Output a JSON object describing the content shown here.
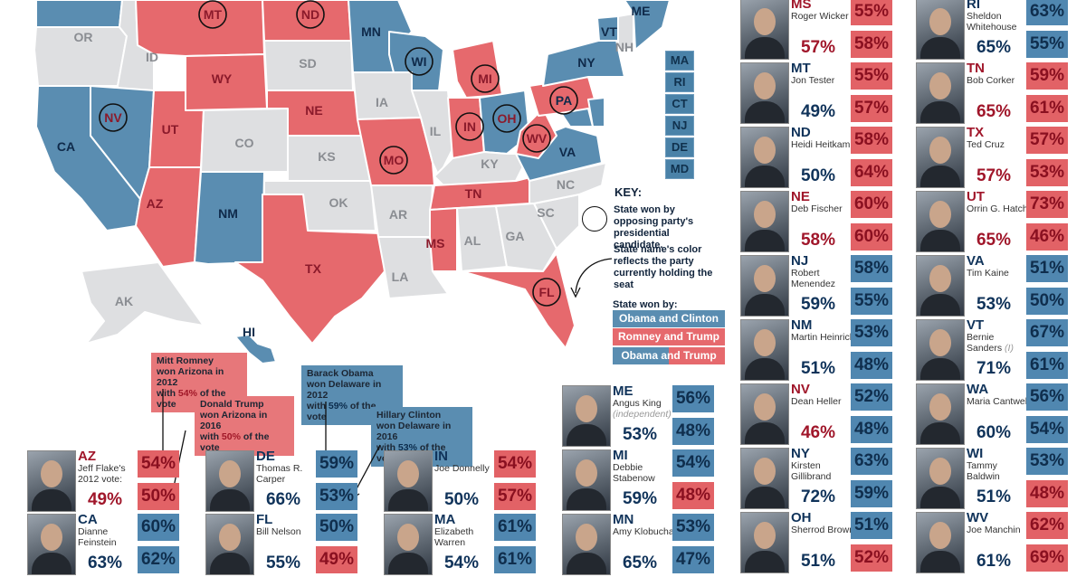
{
  "colors": {
    "blue": "#5a8db1",
    "red": "#e6696d",
    "gray": "#dedfe1",
    "dark_red": "#a0162a",
    "dark_blue": "#10335a"
  },
  "map": {
    "state_labels": [
      "OR",
      "ID",
      "MT",
      "ND",
      "MN",
      "WI",
      "MI",
      "NY",
      "VT",
      "NH",
      "ME",
      "SD",
      "WY",
      "NV",
      "CA",
      "UT",
      "CO",
      "NE",
      "IA",
      "IL",
      "IN",
      "OH",
      "PA",
      "WV",
      "VA",
      "KS",
      "MO",
      "KY",
      "AZ",
      "NM",
      "OK",
      "AR",
      "TN",
      "NC",
      "SC",
      "TX",
      "LA",
      "MS",
      "AL",
      "GA",
      "FL",
      "AK",
      "HI"
    ],
    "circled": [
      "MT",
      "ND",
      "NV",
      "WI",
      "MI",
      "OH",
      "PA",
      "WV",
      "IN",
      "MO",
      "FL"
    ],
    "northeast_boxes": [
      "MA",
      "RI",
      "CT",
      "NJ",
      "DE",
      "MD"
    ]
  },
  "key": {
    "title": "KEY:",
    "circle_text": "State won by opposing party's presidential candidate.",
    "name_color_text": "State name's color reflects the party currently holding the seat",
    "won_by_title": "State won by:",
    "legend": [
      "Obama and Clinton",
      "Romney and Trump",
      "Obama and Trump"
    ]
  },
  "callouts": {
    "romney": [
      "Mitt Romney",
      "won Arizona in 2012",
      "with ",
      "54%",
      " of the vote"
    ],
    "trump": [
      "Donald Trump",
      "won Arizona in 2016",
      "with ",
      "50%",
      " of the vote"
    ],
    "obama": [
      "Barack Obama",
      "won Delaware in 2012",
      "with ",
      "59%",
      " of the vote"
    ],
    "clinton": [
      "Hillary Clinton",
      "won Delaware in 2016",
      "with ",
      "53%",
      " of the vote"
    ]
  },
  "senators": [
    {
      "state": "AZ",
      "name": "Jeff Flake's 2012 vote:",
      "note": "",
      "party": "red",
      "vote": "49%",
      "p2012": "54%",
      "c2012": "red",
      "p2016": "50%",
      "c2016": "red"
    },
    {
      "state": "CA",
      "name": "Dianne Feinstein",
      "note": "",
      "party": "blue",
      "vote": "63%",
      "p2012": "60%",
      "c2012": "blue",
      "p2016": "62%",
      "c2016": "blue"
    },
    {
      "state": "DE",
      "name": "Thomas R. Carper",
      "note": "",
      "party": "blue",
      "vote": "66%",
      "p2012": "59%",
      "c2012": "blue",
      "p2016": "53%",
      "c2016": "blue"
    },
    {
      "state": "FL",
      "name": "Bill Nelson",
      "note": "",
      "party": "blue",
      "vote": "55%",
      "p2012": "50%",
      "c2012": "blue",
      "p2016": "49%",
      "c2016": "red"
    },
    {
      "state": "IN",
      "name": "Joe Donnelly",
      "note": "",
      "party": "blue",
      "vote": "50%",
      "p2012": "54%",
      "c2012": "red",
      "p2016": "57%",
      "c2016": "red"
    },
    {
      "state": "MA",
      "name": "Elizabeth Warren",
      "note": "",
      "party": "blue",
      "vote": "54%",
      "p2012": "61%",
      "c2012": "blue",
      "p2016": "61%",
      "c2016": "blue"
    },
    {
      "state": "ME",
      "name": "Angus King",
      "note": "(independent)",
      "party": "blue",
      "vote": "53%",
      "p2012": "56%",
      "c2012": "blue",
      "p2016": "48%",
      "c2016": "blue"
    },
    {
      "state": "MI",
      "name": "Debbie Stabenow",
      "note": "",
      "party": "blue",
      "vote": "59%",
      "p2012": "54%",
      "c2012": "blue",
      "p2016": "48%",
      "c2016": "red"
    },
    {
      "state": "MN",
      "name": "Amy Klobuchar",
      "note": "",
      "party": "blue",
      "vote": "65%",
      "p2012": "53%",
      "c2012": "blue",
      "p2016": "47%",
      "c2016": "blue"
    },
    {
      "state": "MS",
      "name": "Roger Wicker",
      "note": "",
      "party": "red",
      "vote": "57%",
      "p2012": "55%",
      "c2012": "red",
      "p2016": "58%",
      "c2016": "red"
    },
    {
      "state": "MT",
      "name": "Jon Tester",
      "note": "",
      "party": "blue",
      "vote": "49%",
      "p2012": "55%",
      "c2012": "red",
      "p2016": "57%",
      "c2016": "red"
    },
    {
      "state": "ND",
      "name": "Heidi Heitkamp",
      "note": "",
      "party": "blue",
      "vote": "50%",
      "p2012": "58%",
      "c2012": "red",
      "p2016": "64%",
      "c2016": "red"
    },
    {
      "state": "NE",
      "name": "Deb Fischer",
      "note": "",
      "party": "red",
      "vote": "58%",
      "p2012": "60%",
      "c2012": "red",
      "p2016": "60%",
      "c2016": "red"
    },
    {
      "state": "NJ",
      "name": "Robert Menendez",
      "note": "",
      "party": "blue",
      "vote": "59%",
      "p2012": "58%",
      "c2012": "blue",
      "p2016": "55%",
      "c2016": "blue"
    },
    {
      "state": "NM",
      "name": "Martin Heinrich",
      "note": "",
      "party": "blue",
      "vote": "51%",
      "p2012": "53%",
      "c2012": "blue",
      "p2016": "48%",
      "c2016": "blue"
    },
    {
      "state": "NV",
      "name": "Dean Heller",
      "note": "",
      "party": "red",
      "vote": "46%",
      "p2012": "52%",
      "c2012": "blue",
      "p2016": "48%",
      "c2016": "blue"
    },
    {
      "state": "NY",
      "name": "Kirsten Gillibrand",
      "note": "",
      "party": "blue",
      "vote": "72%",
      "p2012": "63%",
      "c2012": "blue",
      "p2016": "59%",
      "c2016": "blue"
    },
    {
      "state": "OH",
      "name": "Sherrod Brown",
      "note": "",
      "party": "blue",
      "vote": "51%",
      "p2012": "51%",
      "c2012": "blue",
      "p2016": "52%",
      "c2016": "red"
    },
    {
      "state": "RI",
      "name": "Sheldon Whitehouse",
      "note": "",
      "party": "blue",
      "vote": "65%",
      "p2012": "63%",
      "c2012": "blue",
      "p2016": "55%",
      "c2016": "blue"
    },
    {
      "state": "TN",
      "name": "Bob Corker",
      "note": "",
      "party": "red",
      "vote": "65%",
      "p2012": "59%",
      "c2012": "red",
      "p2016": "61%",
      "c2016": "red"
    },
    {
      "state": "TX",
      "name": "Ted Cruz",
      "note": "",
      "party": "red",
      "vote": "57%",
      "p2012": "57%",
      "c2012": "red",
      "p2016": "53%",
      "c2016": "red"
    },
    {
      "state": "UT",
      "name": "Orrin G. Hatch",
      "note": "",
      "party": "red",
      "vote": "65%",
      "p2012": "73%",
      "c2012": "red",
      "p2016": "46%",
      "c2016": "red"
    },
    {
      "state": "VA",
      "name": "Tim Kaine",
      "note": "",
      "party": "blue",
      "vote": "53%",
      "p2012": "51%",
      "c2012": "blue",
      "p2016": "50%",
      "c2016": "blue"
    },
    {
      "state": "VT",
      "name": "Bernie Sanders",
      "note": "(I)",
      "party": "blue",
      "vote": "71%",
      "p2012": "67%",
      "c2012": "blue",
      "p2016": "61%",
      "c2016": "blue"
    },
    {
      "state": "WA",
      "name": "Maria Cantwell",
      "note": "",
      "party": "blue",
      "vote": "60%",
      "p2012": "56%",
      "c2012": "blue",
      "p2016": "54%",
      "c2016": "blue"
    },
    {
      "state": "WI",
      "name": "Tammy Baldwin",
      "note": "",
      "party": "blue",
      "vote": "51%",
      "p2012": "53%",
      "c2012": "blue",
      "p2016": "48%",
      "c2016": "red"
    },
    {
      "state": "WV",
      "name": "Joe Manchin",
      "note": "",
      "party": "blue",
      "vote": "61%",
      "p2012": "62%",
      "c2012": "red",
      "p2016": "69%",
      "c2016": "red"
    }
  ]
}
